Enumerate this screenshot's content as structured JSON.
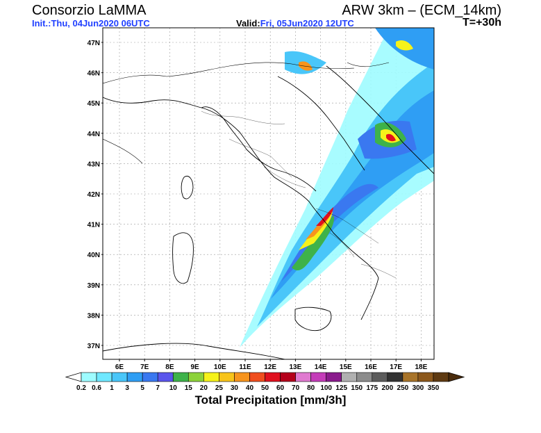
{
  "header": {
    "brand": "Consorzio LaMMA",
    "model": "ARW 3km – (ECM_14km)",
    "init_label": "Init.:",
    "init_value": "Thu, 04Jun2020 06UTC",
    "valid_label": "Valid:",
    "valid_value": "Fri, 05Jun2020 12UTC",
    "timestep": "T=+30h"
  },
  "map": {
    "lat_labels": [
      "47N",
      "46N",
      "45N",
      "44N",
      "43N",
      "42N",
      "41N",
      "40N",
      "39N",
      "38N",
      "37N"
    ],
    "lon_labels": [
      "6E",
      "7E",
      "8E",
      "9E",
      "10E",
      "11E",
      "12E",
      "13E",
      "14E",
      "15E",
      "16E",
      "17E",
      "18E"
    ]
  },
  "colorbar": {
    "title": "Total Precipitation [mm/3h]",
    "levels": [
      "0.2",
      "0.6",
      "1",
      "3",
      "5",
      "7",
      "10",
      "15",
      "20",
      "25",
      "30",
      "40",
      "50",
      "60",
      "70",
      "80",
      "100",
      "125",
      "150",
      "175",
      "200",
      "250",
      "300",
      "350"
    ],
    "colors": [
      "#9efcff",
      "#6fe8ff",
      "#49c6f9",
      "#2f9ef4",
      "#3a78f0",
      "#5a55ec",
      "#3eb24a",
      "#8cd23a",
      "#f6f21a",
      "#f8c41a",
      "#f7941d",
      "#f04e1e",
      "#e0101e",
      "#b5001b",
      "#e07ad0",
      "#c43cb9",
      "#8a1b8c",
      "#b0b0b0",
      "#8c8c8c",
      "#5c5c5c",
      "#333333",
      "#a8742a",
      "#8c581c",
      "#5e3a12"
    ],
    "under_color": "#ffffff",
    "over_color": "#4a2b0c"
  },
  "precip_colors": {
    "light": "#9efcff",
    "mid": "#49c6f9",
    "blue": "#2f9ef4",
    "deep": "#3a78f0",
    "violet": "#5a55ec",
    "green": "#3eb24a",
    "yellow": "#f6f21a",
    "orange": "#f7941d",
    "red": "#e0101e"
  }
}
